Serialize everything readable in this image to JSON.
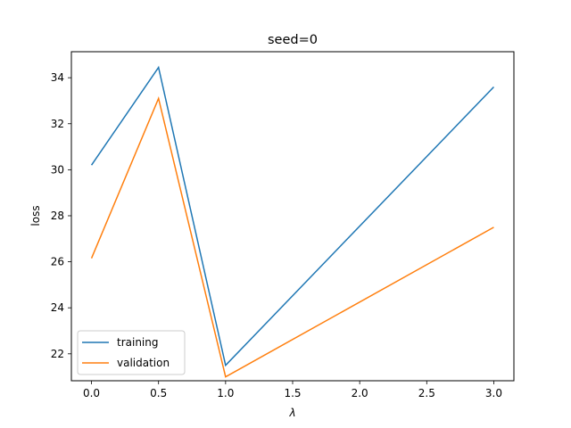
{
  "chart_data": {
    "type": "line",
    "title": "seed=0",
    "xlabel": "λ",
    "ylabel": "loss",
    "x": [
      0.0,
      0.5,
      1.0,
      3.0
    ],
    "series": [
      {
        "name": "training",
        "values": [
          30.2,
          34.45,
          21.5,
          33.6
        ],
        "color": "#1f77b4"
      },
      {
        "name": "validation",
        "values": [
          26.15,
          33.1,
          21.0,
          27.5
        ],
        "color": "#ff7f0e"
      }
    ],
    "xlim": [
      -0.15,
      3.15
    ],
    "ylim": [
      20.83,
      35.13
    ],
    "xticks": [
      "0.0",
      "0.5",
      "1.0",
      "1.5",
      "2.0",
      "2.5",
      "3.0"
    ],
    "xtick_values": [
      0.0,
      0.5,
      1.0,
      1.5,
      2.0,
      2.5,
      3.0
    ],
    "yticks": [
      "22",
      "24",
      "26",
      "28",
      "30",
      "32",
      "34"
    ],
    "ytick_values": [
      22,
      24,
      26,
      28,
      30,
      32,
      34
    ],
    "grid": false,
    "legend_position": "lower-left"
  }
}
